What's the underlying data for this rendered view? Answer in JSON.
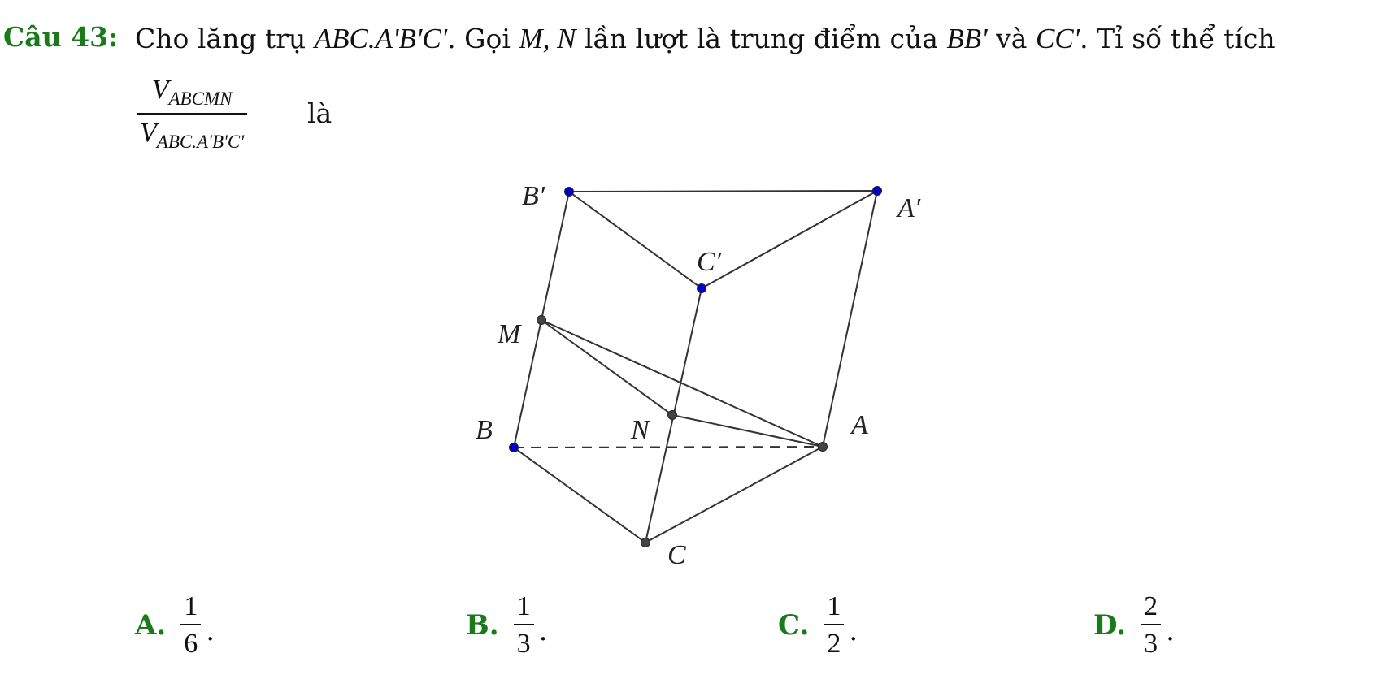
{
  "question": {
    "label": "Câu 43:",
    "text_parts": [
      "Cho lăng trụ ",
      "ABC.A'B'C'",
      ". Gọi ",
      "M, N",
      " lần lượt là trung điểm của ",
      "BB'",
      " và ",
      "CC'",
      ". Tỉ số thể tích"
    ],
    "fraction": {
      "num_main": "V",
      "num_sub": "ABCMN",
      "den_main": "V",
      "den_sub": "ABC.A'B'C'"
    },
    "tail": "là"
  },
  "figure": {
    "labels": {
      "B_prime": "B′",
      "A_prime": "A′",
      "C_prime": "C′",
      "M": "M",
      "N": "N",
      "B": "B",
      "A": "A",
      "C": "C"
    },
    "colors": {
      "top_vertex": "#0000cc",
      "other_vertex": "#444444",
      "line": "#333333"
    }
  },
  "options": [
    {
      "letter": "A.",
      "num": "1",
      "den": "6",
      "suffix": "."
    },
    {
      "letter": "B.",
      "num": "1",
      "den": "3",
      "suffix": "."
    },
    {
      "letter": "C.",
      "num": "1",
      "den": "2",
      "suffix": "."
    },
    {
      "letter": "D.",
      "num": "2",
      "den": "3",
      "suffix": "."
    }
  ]
}
